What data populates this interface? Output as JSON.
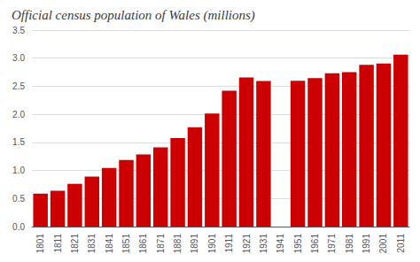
{
  "chart_data": {
    "type": "bar",
    "title": "Official census population of Wales (millions)",
    "categories": [
      "1801",
      "1811",
      "1821",
      "1831",
      "1841",
      "1851",
      "1861",
      "1871",
      "1881",
      "1891",
      "1901",
      "1911",
      "1921",
      "1931",
      "1941",
      "1951",
      "1961",
      "1971",
      "1981",
      "1991",
      "2001",
      "2011"
    ],
    "values": [
      0.587,
      0.637,
      0.762,
      0.89,
      1.046,
      1.188,
      1.286,
      1.412,
      1.577,
      1.771,
      2.013,
      2.421,
      2.656,
      2.593,
      0,
      2.599,
      2.644,
      2.731,
      2.75,
      2.881,
      2.903,
      3.063
    ],
    "color": "#cc0000",
    "ylim": [
      0,
      3.5
    ],
    "yticks": [
      {
        "value": 0,
        "label": "0.0"
      },
      0.5,
      {
        "value": 1,
        "label": "1.0"
      },
      1.5,
      {
        "value": 2,
        "label": "2.0"
      },
      2.5,
      {
        "value": 3,
        "label": "3.0"
      },
      3.5
    ],
    "grid": true
  }
}
